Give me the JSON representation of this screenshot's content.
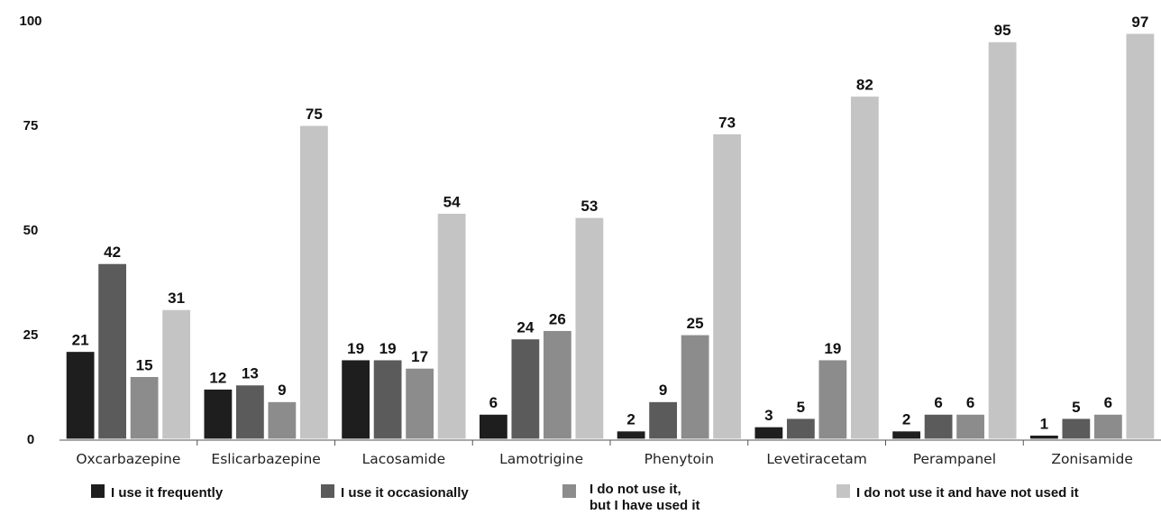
{
  "chart_data": {
    "type": "bar",
    "title": "",
    "xlabel": "",
    "ylabel": "",
    "ylim": [
      0,
      100
    ],
    "yticks": [
      0,
      25,
      50,
      75,
      100
    ],
    "grid": false,
    "legend_position": "bottom",
    "categories": [
      "Oxcarbazepine",
      "Eslicarbazepine",
      "Lacosamide",
      "Lamotrigine",
      "Phenytoin",
      "Levetiracetam",
      "Perampanel",
      "Zonisamide"
    ],
    "series": [
      {
        "name": "I use it frequently",
        "color": "#1e1e1e",
        "values": [
          21,
          12,
          19,
          6,
          2,
          3,
          2,
          1
        ]
      },
      {
        "name": "I use it occasionally",
        "color": "#5b5b5b",
        "values": [
          42,
          13,
          19,
          24,
          9,
          5,
          6,
          5
        ]
      },
      {
        "name": "I do not use it,\nbut I have used it",
        "color": "#8c8c8c",
        "values": [
          15,
          9,
          17,
          26,
          25,
          19,
          6,
          6
        ]
      },
      {
        "name": "I do not use it and have not used it",
        "color": "#c4c4c4",
        "values": [
          31,
          75,
          54,
          53,
          73,
          82,
          95,
          97
        ]
      }
    ]
  }
}
